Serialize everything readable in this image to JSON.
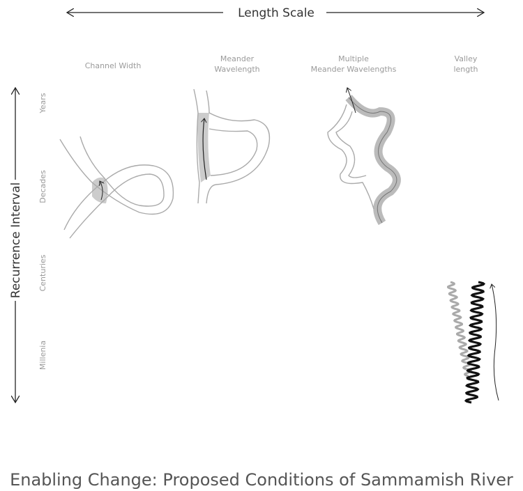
{
  "axes": {
    "x_label": "Length Scale",
    "y_label": "Recurrence Interval"
  },
  "columns": [
    [
      "Channel Width"
    ],
    [
      "Meander",
      "Wavelength"
    ],
    [
      "Multiple",
      "Meander Wavelengths"
    ],
    [
      "Valley",
      "length"
    ]
  ],
  "rows": [
    "Years",
    "Decades",
    "Centuries",
    "Millenia"
  ],
  "footer": {
    "title": "Enabling Change: Proposed Conditions of Sammamish River"
  }
}
